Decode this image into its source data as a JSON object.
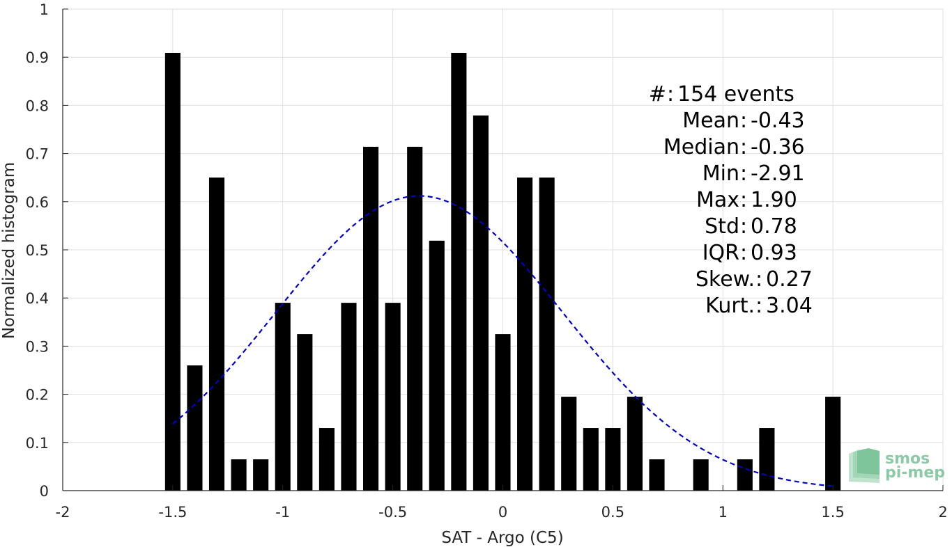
{
  "chart_data": {
    "type": "bar",
    "xlabel": "SAT - Argo (C5)",
    "ylabel": "Normalized histogram",
    "xlim": [
      -2,
      2
    ],
    "ylim": [
      0,
      1
    ],
    "x_ticks": [
      -2,
      -1.5,
      -1,
      -0.5,
      0,
      0.5,
      1,
      1.5,
      2
    ],
    "x_tick_labels": [
      "-2",
      "-1.5",
      "-1",
      "-0.5",
      "0",
      "0.5",
      "1",
      "1.5",
      "2"
    ],
    "y_ticks": [
      0,
      0.1,
      0.2,
      0.3,
      0.4,
      0.5,
      0.6,
      0.7,
      0.8,
      0.9,
      1
    ],
    "y_tick_labels": [
      "0",
      "0.1",
      "0.2",
      "0.3",
      "0.4",
      "0.5",
      "0.6",
      "0.7",
      "0.8",
      "0.9",
      "1"
    ],
    "grid": true,
    "bar_color": "#000000",
    "bars": [
      {
        "x": -1.5,
        "y": 0.909
      },
      {
        "x": -1.4,
        "y": 0.26
      },
      {
        "x": -1.3,
        "y": 0.65
      },
      {
        "x": -1.2,
        "y": 0.065
      },
      {
        "x": -1.1,
        "y": 0.065
      },
      {
        "x": -1.0,
        "y": 0.39
      },
      {
        "x": -0.9,
        "y": 0.325
      },
      {
        "x": -0.8,
        "y": 0.13
      },
      {
        "x": -0.7,
        "y": 0.39
      },
      {
        "x": -0.6,
        "y": 0.714
      },
      {
        "x": -0.5,
        "y": 0.39
      },
      {
        "x": -0.4,
        "y": 0.714
      },
      {
        "x": -0.3,
        "y": 0.519
      },
      {
        "x": -0.2,
        "y": 0.909
      },
      {
        "x": -0.1,
        "y": 0.779
      },
      {
        "x": 0.0,
        "y": 0.325
      },
      {
        "x": 0.1,
        "y": 0.65
      },
      {
        "x": 0.2,
        "y": 0.65
      },
      {
        "x": 0.3,
        "y": 0.195
      },
      {
        "x": 0.4,
        "y": 0.13
      },
      {
        "x": 0.5,
        "y": 0.13
      },
      {
        "x": 0.6,
        "y": 0.195
      },
      {
        "x": 0.7,
        "y": 0.065
      },
      {
        "x": 0.9,
        "y": 0.065
      },
      {
        "x": 1.1,
        "y": 0.065
      },
      {
        "x": 1.2,
        "y": 0.13
      },
      {
        "x": 1.5,
        "y": 0.195
      }
    ],
    "bar_width": 0.07,
    "fit": {
      "type": "normal",
      "mean": -0.38,
      "std": 0.65,
      "peak": 0.612,
      "x_range": [
        -1.5,
        1.5
      ],
      "color": "#0000cc",
      "style": "dashed"
    },
    "stats": [
      {
        "label": "#  ",
        "value": "154 events"
      },
      {
        "label": "Mean",
        "value": "-0.43"
      },
      {
        "label": "Median",
        "value": "-0.36"
      },
      {
        "label": "Min",
        "value": "-2.91"
      },
      {
        "label": "Max",
        "value": "1.90"
      },
      {
        "label": "Std",
        "value": "0.78"
      },
      {
        "label": "IQR",
        "value": "0.93"
      },
      {
        "label": "Skew.",
        "value": "0.27"
      },
      {
        "label": "Kurt.",
        "value": "3.04"
      }
    ]
  },
  "logo": {
    "line1": "smos",
    "line2": "pi-mep",
    "color": "#8cc9a6"
  }
}
